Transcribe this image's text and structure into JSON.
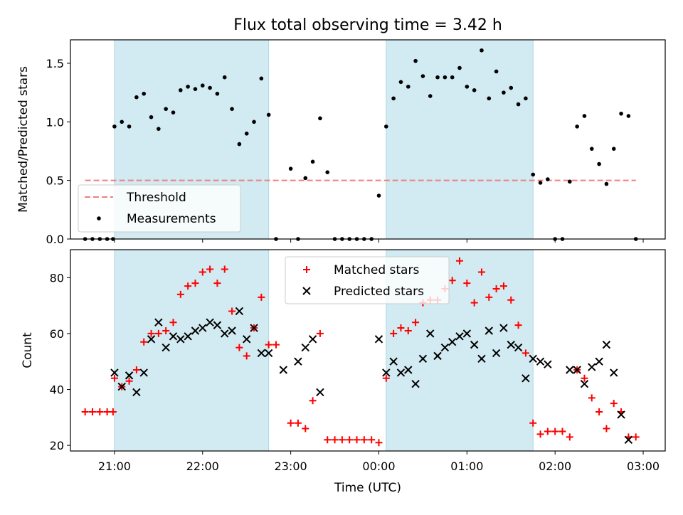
{
  "title": "Flux total observing time = 3.42 h",
  "colors": {
    "shade": "#add8e6",
    "threshold": "#f08080",
    "matched": "#ff0000",
    "predicted": "#000000",
    "measurement": "#000000"
  },
  "chart_data": [
    {
      "type": "scatter",
      "ylabel": "Matched/Predicted stars",
      "xlabel": "",
      "xlim": [
        "20:30",
        "03:15"
      ],
      "ylim": [
        0,
        1.7
      ],
      "yticks": [
        0.0,
        0.5,
        1.0,
        1.5
      ],
      "ytick_labels": [
        "0.0",
        "0.5",
        "1.0",
        "1.5"
      ],
      "shaded_intervals": [
        [
          "21:00",
          "22:45"
        ],
        [
          "00:05",
          "01:45"
        ]
      ],
      "legend_position": "lower-left",
      "legend": [
        "Threshold",
        "Measurements"
      ],
      "threshold": {
        "name": "Threshold",
        "value": 0.5,
        "x_range": [
          "20:40",
          "02:55"
        ]
      },
      "series": [
        {
          "name": "Measurements",
          "points": [
            [
              "20:40",
              0
            ],
            [
              "20:45",
              0
            ],
            [
              "20:50",
              0
            ],
            [
              "20:55",
              0
            ],
            [
              "20:59",
              0
            ],
            [
              "21:00",
              0.96
            ],
            [
              "21:05",
              1.0
            ],
            [
              "21:10",
              0.96
            ],
            [
              "21:15",
              1.21
            ],
            [
              "21:20",
              1.24
            ],
            [
              "21:25",
              1.04
            ],
            [
              "21:30",
              0.94
            ],
            [
              "21:35",
              1.11
            ],
            [
              "21:40",
              1.08
            ],
            [
              "21:45",
              1.27
            ],
            [
              "21:50",
              1.3
            ],
            [
              "21:55",
              1.28
            ],
            [
              "22:00",
              1.31
            ],
            [
              "22:05",
              1.29
            ],
            [
              "22:10",
              1.24
            ],
            [
              "22:15",
              1.38
            ],
            [
              "22:20",
              1.11
            ],
            [
              "22:25",
              0.81
            ],
            [
              "22:30",
              0.9
            ],
            [
              "22:35",
              1.0
            ],
            [
              "22:40",
              1.37
            ],
            [
              "22:45",
              1.06
            ],
            [
              "22:50",
              0
            ],
            [
              "23:00",
              0.6
            ],
            [
              "23:05",
              0
            ],
            [
              "23:10",
              0.52
            ],
            [
              "23:15",
              0.66
            ],
            [
              "23:20",
              1.03
            ],
            [
              "23:25",
              0.57
            ],
            [
              "23:30",
              0
            ],
            [
              "23:35",
              0
            ],
            [
              "23:40",
              0
            ],
            [
              "23:45",
              0
            ],
            [
              "23:50",
              0
            ],
            [
              "23:55",
              0
            ],
            [
              "00:00",
              0.37
            ],
            [
              "00:05",
              0.96
            ],
            [
              "00:10",
              1.2
            ],
            [
              "00:15",
              1.34
            ],
            [
              "00:20",
              1.3
            ],
            [
              "00:25",
              1.52
            ],
            [
              "00:30",
              1.39
            ],
            [
              "00:35",
              1.22
            ],
            [
              "00:40",
              1.38
            ],
            [
              "00:45",
              1.38
            ],
            [
              "00:50",
              1.38
            ],
            [
              "00:55",
              1.46
            ],
            [
              "01:00",
              1.3
            ],
            [
              "01:05",
              1.27
            ],
            [
              "01:10",
              1.61
            ],
            [
              "01:15",
              1.2
            ],
            [
              "01:20",
              1.43
            ],
            [
              "01:25",
              1.25
            ],
            [
              "01:30",
              1.29
            ],
            [
              "01:35",
              1.15
            ],
            [
              "01:40",
              1.2
            ],
            [
              "01:45",
              0.55
            ],
            [
              "01:50",
              0.48
            ],
            [
              "01:55",
              0.51
            ],
            [
              "02:00",
              0
            ],
            [
              "02:05",
              0
            ],
            [
              "02:10",
              0.49
            ],
            [
              "02:15",
              0.96
            ],
            [
              "02:20",
              1.05
            ],
            [
              "02:25",
              0.77
            ],
            [
              "02:30",
              0.64
            ],
            [
              "02:35",
              0.47
            ],
            [
              "02:40",
              0.77
            ],
            [
              "02:45",
              1.07
            ],
            [
              "02:50",
              1.05
            ],
            [
              "02:55",
              0
            ]
          ]
        }
      ]
    },
    {
      "type": "scatter",
      "ylabel": "Count",
      "xlabel": "Time (UTC)",
      "xlim": [
        "20:30",
        "03:15"
      ],
      "ylim": [
        18,
        90
      ],
      "yticks": [
        20,
        40,
        60,
        80
      ],
      "ytick_labels": [
        "20",
        "40",
        "60",
        "80"
      ],
      "xticks": [
        "21:00",
        "22:00",
        "23:00",
        "00:00",
        "01:00",
        "02:00",
        "03:00"
      ],
      "xtick_labels": [
        "21:00",
        "22:00",
        "23:00",
        "00:00",
        "01:00",
        "02:00",
        "03:00"
      ],
      "shaded_intervals": [
        [
          "21:00",
          "22:45"
        ],
        [
          "00:05",
          "01:45"
        ]
      ],
      "legend_position": "top-center",
      "legend": [
        "Matched stars",
        "Predicted stars"
      ],
      "series": [
        {
          "name": "Matched stars",
          "marker": "+",
          "points": [
            [
              "20:40",
              32
            ],
            [
              "20:45",
              32
            ],
            [
              "20:50",
              32
            ],
            [
              "20:55",
              32
            ],
            [
              "20:59",
              32
            ],
            [
              "21:00",
              44
            ],
            [
              "21:05",
              41
            ],
            [
              "21:10",
              43
            ],
            [
              "21:15",
              47
            ],
            [
              "21:20",
              57
            ],
            [
              "21:25",
              60
            ],
            [
              "21:30",
              60
            ],
            [
              "21:35",
              61
            ],
            [
              "21:40",
              64
            ],
            [
              "21:45",
              74
            ],
            [
              "21:50",
              77
            ],
            [
              "21:55",
              78
            ],
            [
              "22:00",
              82
            ],
            [
              "22:05",
              83
            ],
            [
              "22:10",
              78
            ],
            [
              "22:15",
              83
            ],
            [
              "22:20",
              68
            ],
            [
              "22:25",
              55
            ],
            [
              "22:30",
              52
            ],
            [
              "22:35",
              62
            ],
            [
              "22:40",
              73
            ],
            [
              "22:45",
              56
            ],
            [
              "22:50",
              56
            ],
            [
              "23:00",
              28
            ],
            [
              "23:05",
              28
            ],
            [
              "23:10",
              26
            ],
            [
              "23:15",
              36
            ],
            [
              "23:20",
              60
            ],
            [
              "23:25",
              22
            ],
            [
              "23:30",
              22
            ],
            [
              "23:35",
              22
            ],
            [
              "23:40",
              22
            ],
            [
              "23:45",
              22
            ],
            [
              "23:50",
              22
            ],
            [
              "23:55",
              22
            ],
            [
              "00:00",
              21
            ],
            [
              "00:05",
              44
            ],
            [
              "00:10",
              60
            ],
            [
              "00:15",
              62
            ],
            [
              "00:20",
              61
            ],
            [
              "00:25",
              64
            ],
            [
              "00:30",
              71
            ],
            [
              "00:35",
              72
            ],
            [
              "00:40",
              72
            ],
            [
              "00:45",
              76
            ],
            [
              "00:50",
              79
            ],
            [
              "00:55",
              86
            ],
            [
              "01:00",
              78
            ],
            [
              "01:05",
              71
            ],
            [
              "01:10",
              82
            ],
            [
              "01:15",
              73
            ],
            [
              "01:20",
              76
            ],
            [
              "01:25",
              77
            ],
            [
              "01:30",
              72
            ],
            [
              "01:35",
              63
            ],
            [
              "01:40",
              53
            ],
            [
              "01:45",
              28
            ],
            [
              "01:50",
              24
            ],
            [
              "01:55",
              25
            ],
            [
              "02:00",
              25
            ],
            [
              "02:05",
              25
            ],
            [
              "02:10",
              23
            ],
            [
              "02:15",
              47
            ],
            [
              "02:20",
              44
            ],
            [
              "02:25",
              37
            ],
            [
              "02:30",
              32
            ],
            [
              "02:35",
              26
            ],
            [
              "02:40",
              35
            ],
            [
              "02:45",
              32
            ],
            [
              "02:50",
              23
            ],
            [
              "02:55",
              23
            ]
          ]
        },
        {
          "name": "Predicted stars",
          "marker": "x",
          "points": [
            [
              "21:00",
              46
            ],
            [
              "21:05",
              41
            ],
            [
              "21:10",
              45
            ],
            [
              "21:15",
              39
            ],
            [
              "21:20",
              46
            ],
            [
              "21:25",
              58
            ],
            [
              "21:30",
              64
            ],
            [
              "21:35",
              55
            ],
            [
              "21:40",
              59
            ],
            [
              "21:45",
              58
            ],
            [
              "21:50",
              59
            ],
            [
              "21:55",
              61
            ],
            [
              "22:00",
              62
            ],
            [
              "22:05",
              64
            ],
            [
              "22:10",
              63
            ],
            [
              "22:15",
              60
            ],
            [
              "22:20",
              61
            ],
            [
              "22:25",
              68
            ],
            [
              "22:30",
              58
            ],
            [
              "22:35",
              62
            ],
            [
              "22:40",
              53
            ],
            [
              "22:45",
              53
            ],
            [
              "22:55",
              47
            ],
            [
              "23:05",
              50
            ],
            [
              "23:10",
              55
            ],
            [
              "23:15",
              58
            ],
            [
              "23:20",
              39
            ],
            [
              "00:00",
              58
            ],
            [
              "00:05",
              46
            ],
            [
              "00:10",
              50
            ],
            [
              "00:15",
              46
            ],
            [
              "00:20",
              47
            ],
            [
              "00:25",
              42
            ],
            [
              "00:30",
              51
            ],
            [
              "00:35",
              60
            ],
            [
              "00:40",
              52
            ],
            [
              "00:45",
              55
            ],
            [
              "00:50",
              57
            ],
            [
              "00:55",
              59
            ],
            [
              "01:00",
              60
            ],
            [
              "01:05",
              56
            ],
            [
              "01:10",
              51
            ],
            [
              "01:15",
              61
            ],
            [
              "01:20",
              53
            ],
            [
              "01:25",
              62
            ],
            [
              "01:30",
              56
            ],
            [
              "01:35",
              55
            ],
            [
              "01:40",
              44
            ],
            [
              "01:45",
              51
            ],
            [
              "01:50",
              50
            ],
            [
              "01:55",
              49
            ],
            [
              "02:10",
              47
            ],
            [
              "02:15",
              47
            ],
            [
              "02:20",
              42
            ],
            [
              "02:25",
              48
            ],
            [
              "02:30",
              50
            ],
            [
              "02:35",
              56
            ],
            [
              "02:40",
              46
            ],
            [
              "02:45",
              31
            ],
            [
              "02:50",
              22
            ]
          ]
        }
      ]
    }
  ]
}
